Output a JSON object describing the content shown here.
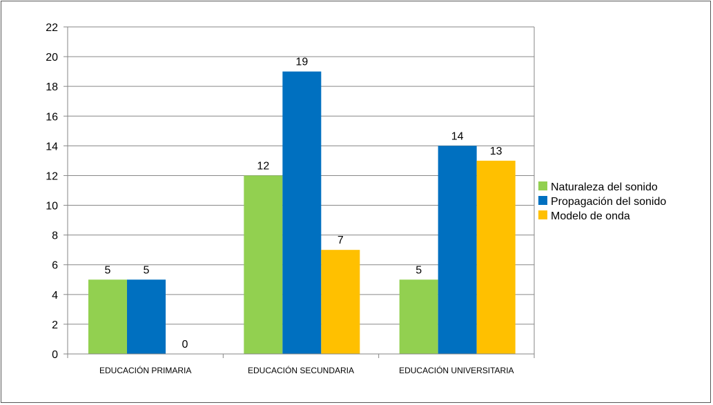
{
  "chart_data": {
    "type": "bar",
    "title": "",
    "xlabel": "",
    "ylabel": "",
    "categories": [
      "EDUCACIÓN PRIMARIA",
      "EDUCACIÓN SECUNDARIA",
      "EDUCACIÓN UNIVERSITARIA"
    ],
    "series": [
      {
        "name": "Naturaleza del sonido",
        "values": [
          5,
          12,
          5
        ],
        "color": "#92d050"
      },
      {
        "name": "Propagación del sonido",
        "values": [
          5,
          19,
          14
        ],
        "color": "#0070c0"
      },
      {
        "name": "Modelo de onda",
        "values": [
          0,
          7,
          13
        ],
        "color": "#ffc000"
      }
    ],
    "ylim": [
      0,
      22
    ],
    "yticks": [
      0,
      2,
      4,
      6,
      8,
      10,
      12,
      14,
      16,
      18,
      20,
      22
    ],
    "grid": true,
    "legend": "right"
  }
}
